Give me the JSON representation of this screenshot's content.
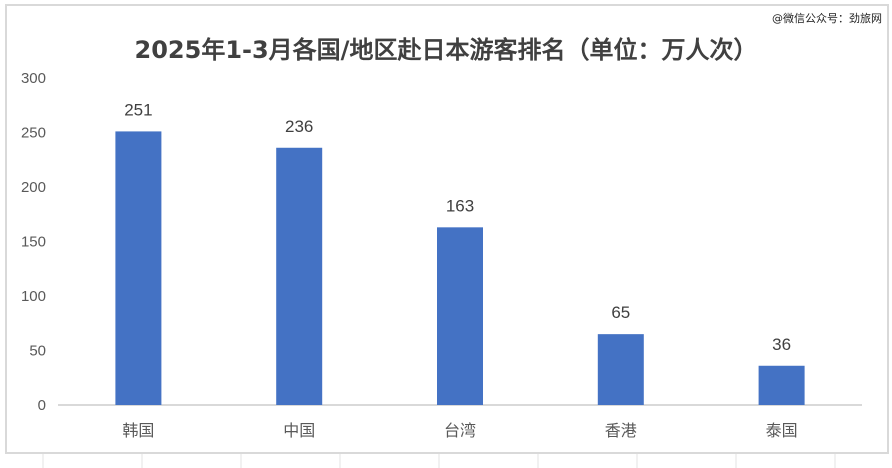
{
  "watermark": "@微信公众号：劲旅网",
  "chart_data": {
    "type": "bar",
    "title": "2025年1-3月各国/地区赴日本游客排名（单位：万人次）",
    "categories": [
      "韩国",
      "中国",
      "台湾",
      "香港",
      "泰国"
    ],
    "values": [
      251,
      236,
      163,
      65,
      36
    ],
    "ylim": [
      0,
      300
    ],
    "yticks": [
      0,
      50,
      100,
      150,
      200,
      250,
      300
    ],
    "xlabel": "",
    "ylabel": "",
    "grid": false,
    "legend": "none",
    "bar_color": "#4472c4",
    "data_labels": true
  }
}
